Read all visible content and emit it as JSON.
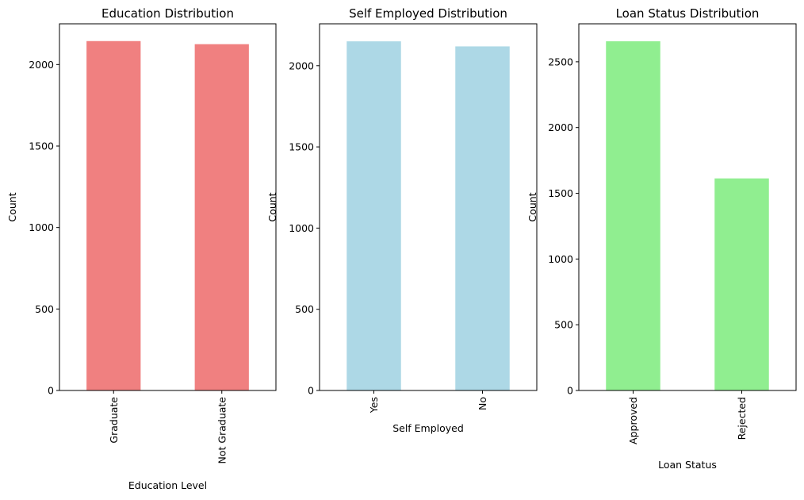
{
  "chart_data": [
    {
      "type": "bar",
      "title": "Education Distribution",
      "xlabel": "Education Level",
      "ylabel": "Count",
      "categories": [
        "Graduate",
        "Not Graduate"
      ],
      "values": [
        2144,
        2125
      ],
      "ylim": [
        0,
        2250
      ],
      "yticks": [
        0,
        500,
        1000,
        1500,
        2000
      ],
      "color": "#f08080",
      "grid": false
    },
    {
      "type": "bar",
      "title": "Self Employed Distribution",
      "xlabel": "Self Employed",
      "ylabel": "Count",
      "categories": [
        "Yes",
        "No"
      ],
      "values": [
        2150,
        2119
      ],
      "ylim": [
        0,
        2258
      ],
      "yticks": [
        0,
        500,
        1000,
        1500,
        2000
      ],
      "color": "#add8e6",
      "grid": false
    },
    {
      "type": "bar",
      "title": "Loan Status Distribution",
      "xlabel": "Loan Status",
      "ylabel": "Count",
      "categories": [
        "Approved",
        "Rejected"
      ],
      "values": [
        2656,
        1613
      ],
      "ylim": [
        0,
        2789
      ],
      "yticks": [
        0,
        500,
        1000,
        1500,
        2000,
        2500
      ],
      "color": "#90ee90",
      "grid": false
    }
  ]
}
